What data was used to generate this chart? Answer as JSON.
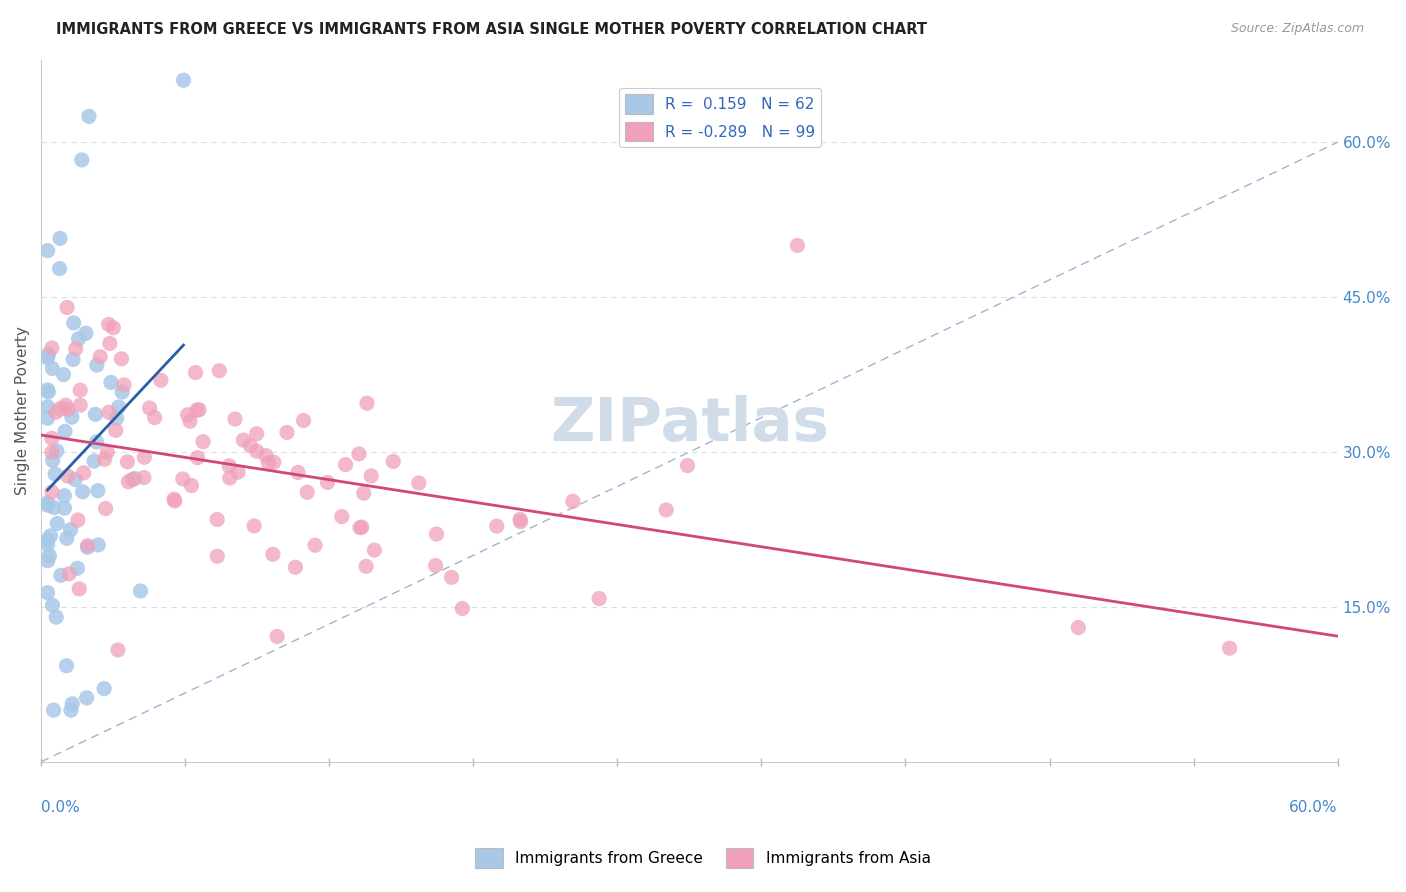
{
  "title": "IMMIGRANTS FROM GREECE VS IMMIGRANTS FROM ASIA SINGLE MOTHER POVERTY CORRELATION CHART",
  "source": "Source: ZipAtlas.com",
  "ylabel": "Single Mother Poverty",
  "right_yticks": [
    0.15,
    0.3,
    0.45,
    0.6
  ],
  "right_yticklabels": [
    "15.0%",
    "30.0%",
    "45.0%",
    "60.0%"
  ],
  "legend_line1": "R =  0.159   N = 62",
  "legend_line2": "R = -0.289   N = 99",
  "greece_color": "#a8c8e8",
  "asia_color": "#f0a0b8",
  "greece_trend_color": "#2860a8",
  "asia_trend_color": "#d04878",
  "ref_line_color": "#8090c0",
  "grid_color": "#d8dde8",
  "background_color": "#ffffff",
  "xlim": [
    0.0,
    0.6
  ],
  "ylim": [
    0.0,
    0.68
  ],
  "watermark": "ZIPatlas",
  "watermark_color": "#d0dce8",
  "greece_seed": 10,
  "asia_seed": 20
}
